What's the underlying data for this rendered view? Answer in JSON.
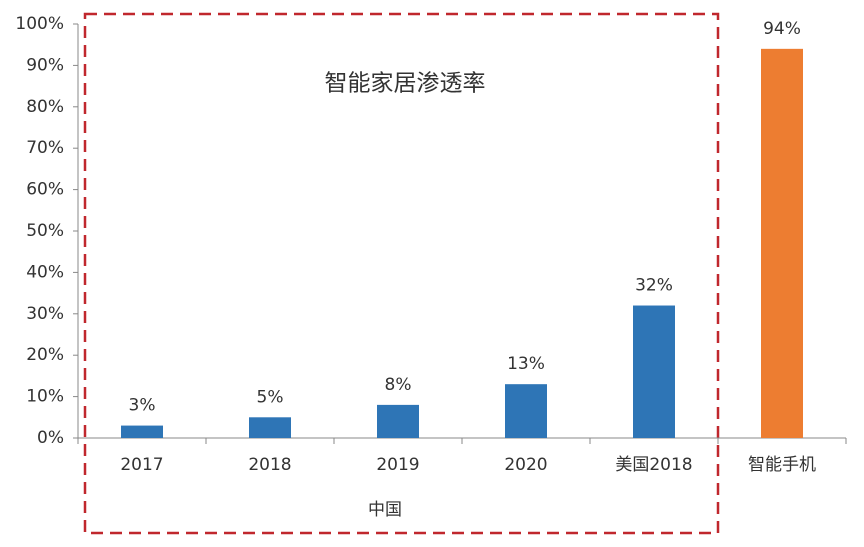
{
  "chart_data": {
    "type": "bar",
    "title": "智能家居渗透率",
    "group_label": "中国",
    "categories": [
      "2017",
      "2018",
      "2019",
      "2020",
      "美国2018",
      "智能手机"
    ],
    "values": [
      3,
      5,
      8,
      13,
      32,
      94
    ],
    "value_labels": [
      "3%",
      "5%",
      "8%",
      "13%",
      "32%",
      "94%"
    ],
    "colors": [
      "#2e75b6",
      "#2e75b6",
      "#2e75b6",
      "#2e75b6",
      "#2e75b6",
      "#ed7d31"
    ],
    "ylim": [
      0,
      100
    ],
    "yticks": [
      {
        "value": 0,
        "label": "0%"
      },
      {
        "value": 10,
        "label": "10%"
      },
      {
        "value": 20,
        "label": "20%"
      },
      {
        "value": 30,
        "label": "30%"
      },
      {
        "value": 40,
        "label": "40%"
      },
      {
        "value": 50,
        "label": "50%"
      },
      {
        "value": 60,
        "label": "60%"
      },
      {
        "value": 70,
        "label": "70%"
      },
      {
        "value": 80,
        "label": "80%"
      },
      {
        "value": 90,
        "label": "90%"
      },
      {
        "value": 100,
        "label": "100%"
      }
    ],
    "grid": false
  }
}
